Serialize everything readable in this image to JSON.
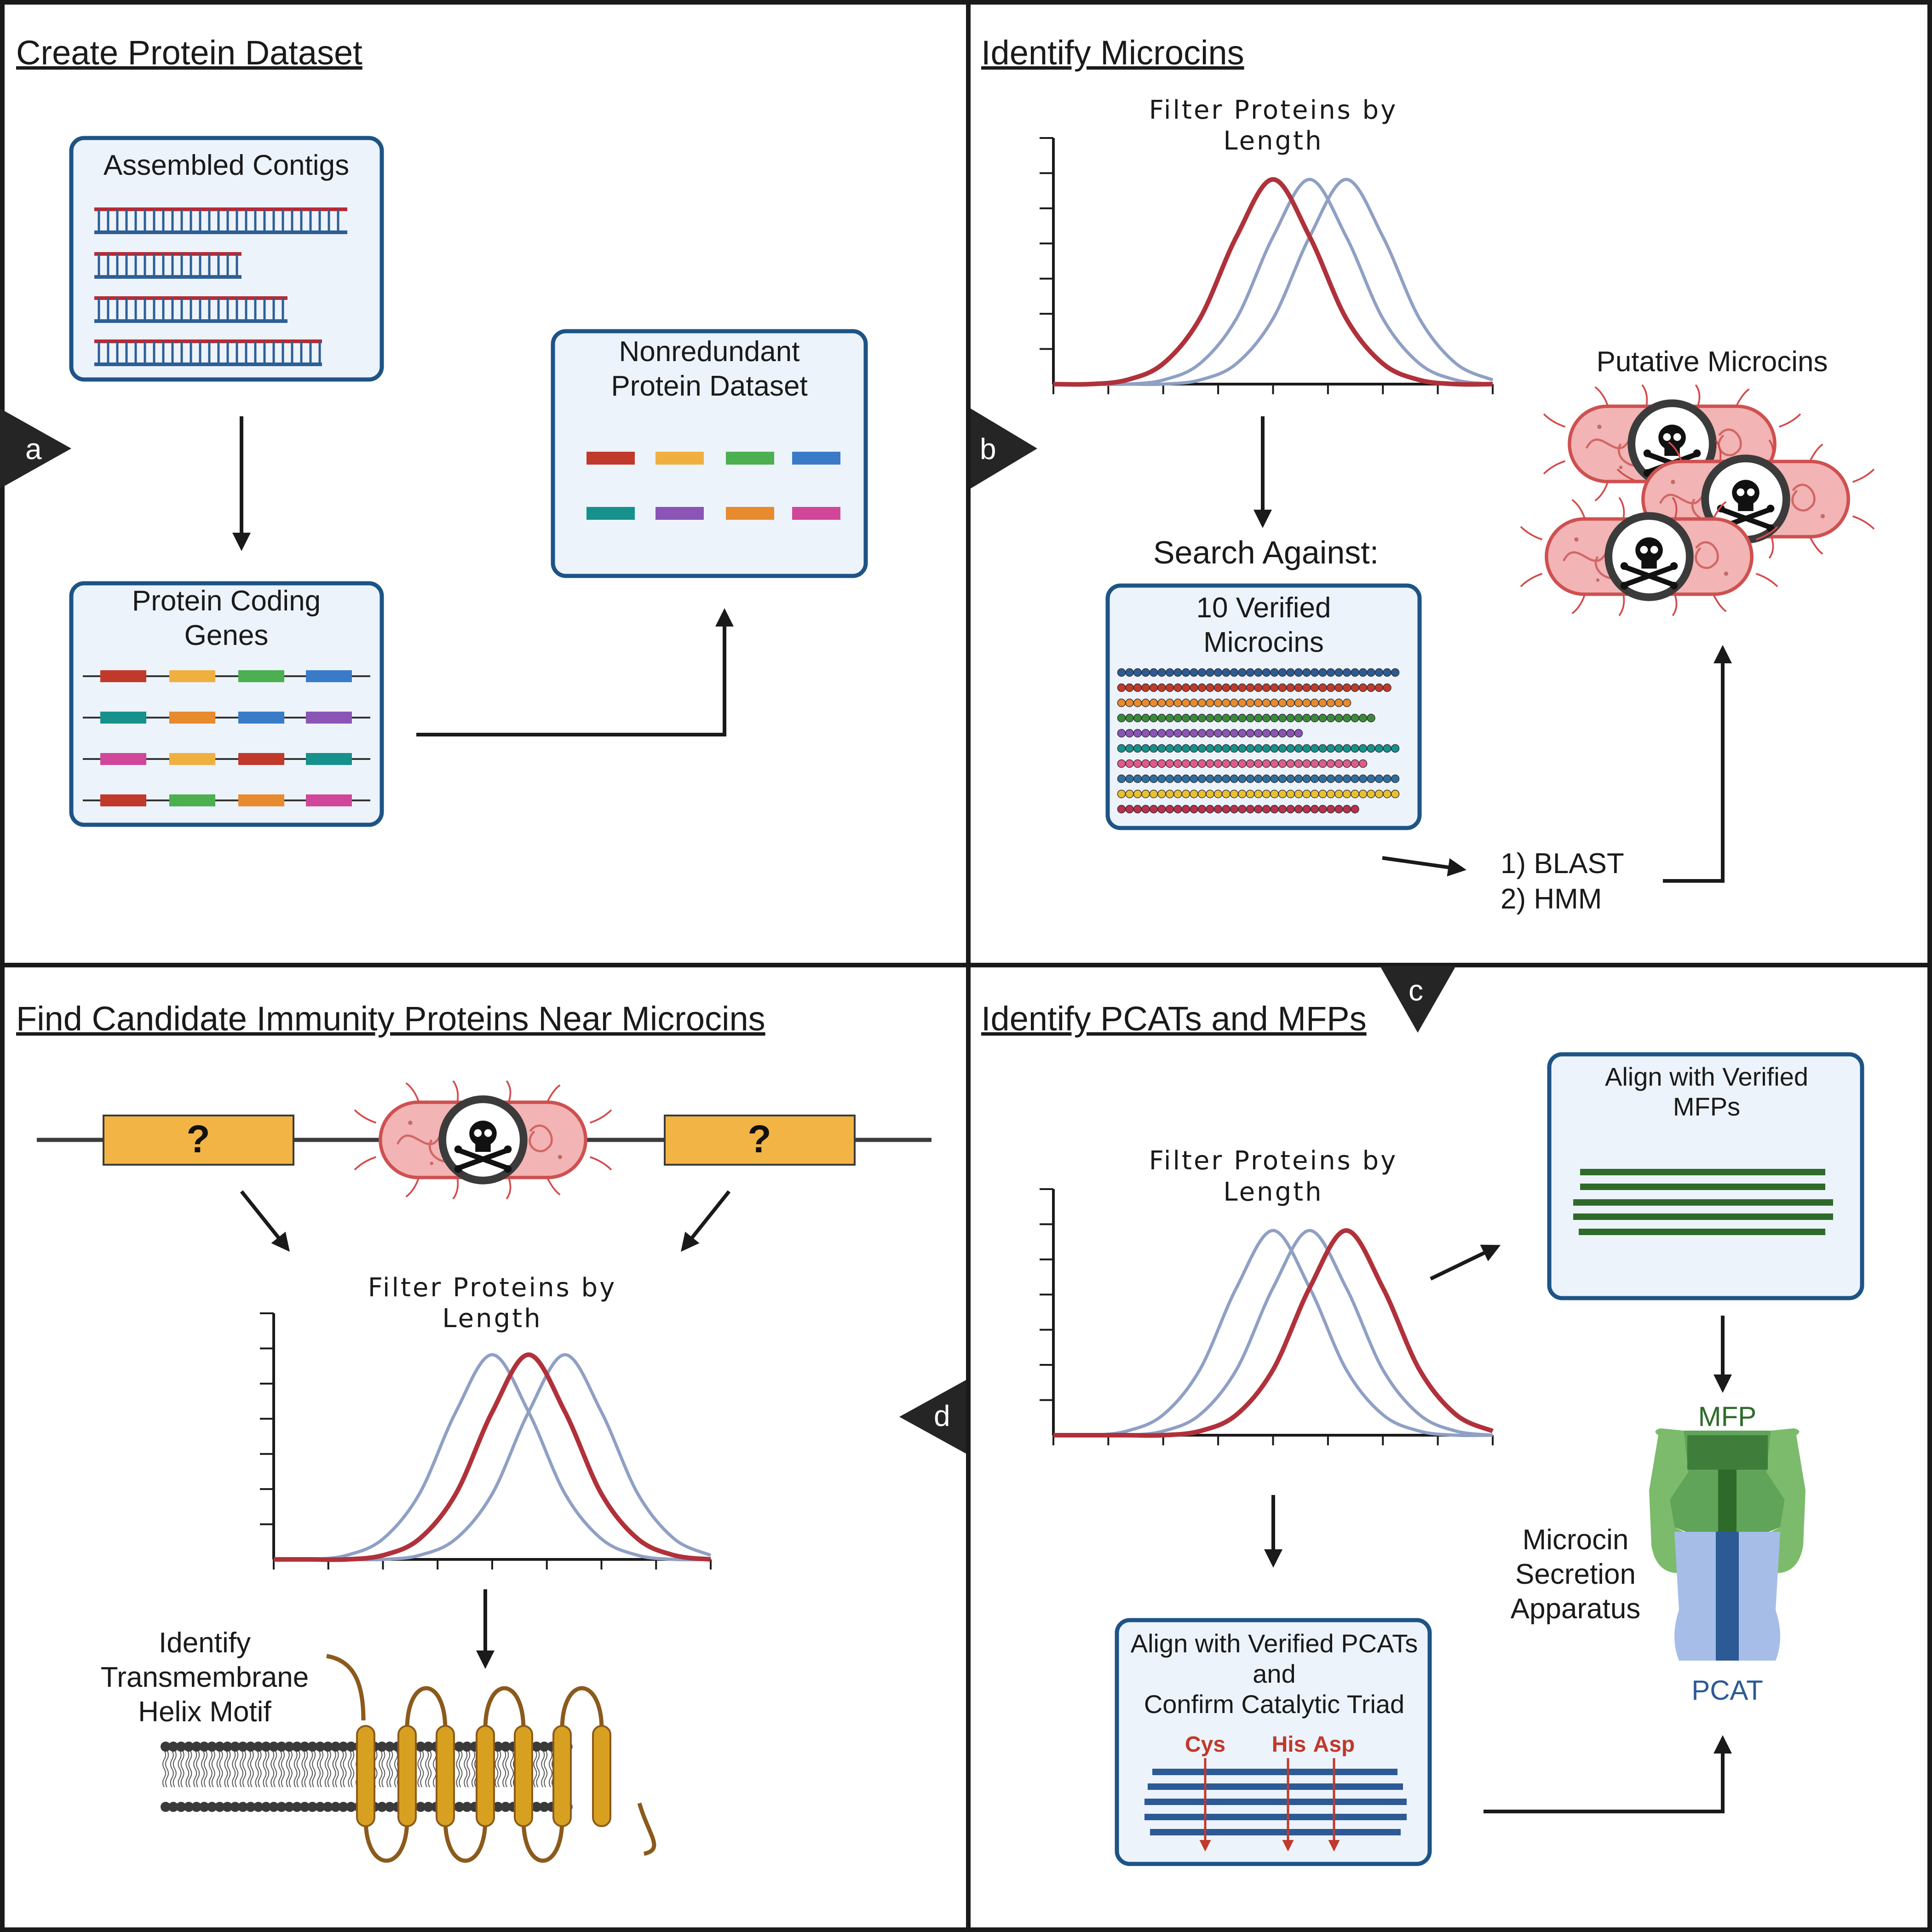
{
  "panels": {
    "a": {
      "letter": "a",
      "title": "Create Protein Dataset",
      "contigs_label": "Assembled Contigs",
      "genes_label": [
        "Protein Coding",
        "Genes"
      ],
      "dataset_label": [
        "Nonredundant",
        "Protein Dataset"
      ]
    },
    "b": {
      "letter": "b",
      "title": "Identify Microcins",
      "chart_title": [
        "Filter Proteins by",
        "Length"
      ],
      "search_label": "Search Against:",
      "verified_label": [
        "10 Verified",
        "Microcins"
      ],
      "methods": [
        "1) BLAST",
        "2) HMM"
      ],
      "putative_label": "Putative Microcins"
    },
    "c": {
      "letter": "c",
      "title": "Identify PCATs and MFPs",
      "chart_title": [
        "Filter Proteins by",
        "Length"
      ],
      "mfp_box_label": [
        "Align with Verified",
        "MFPs"
      ],
      "pcat_box_label": [
        "Align with Verified PCATs",
        "and",
        "Confirm Catalytic Triad"
      ],
      "triad": [
        "Cys",
        "His",
        "Asp"
      ],
      "apparatus_label": [
        "Microcin",
        "Secretion",
        "Apparatus"
      ],
      "mfp_label": "MFP",
      "pcat_label": "PCAT"
    },
    "d": {
      "letter": "d",
      "title": "Find Candidate Immunity Proteins Near Microcins",
      "unknown_gene_mark": "?",
      "chart_title": [
        "Filter Proteins by",
        "Length"
      ],
      "tm_label": [
        "Identify",
        "Transmembrane",
        "Helix Motif"
      ]
    }
  },
  "colors": {
    "highlight_curve": "#b0313a",
    "background_curve": "#8fa0c4",
    "box_border": "#1d5486",
    "box_fill": "#edf3fb",
    "mfp_green": "#2e6b2a",
    "pcat_blue": "#2c5a94",
    "helix_gold": "#d8a020",
    "gene_palette": [
      "#c0392b",
      "#f0b040",
      "#4caf50",
      "#3a7bc8",
      "#16918c",
      "#8a55b5",
      "#e88a2e",
      "#d0479a"
    ]
  },
  "icons": [
    "skull-crossbones-icon",
    "bacterium-icon",
    "membrane-icon",
    "transporter-icon",
    "dna-icon"
  ],
  "chart_data": [
    {
      "panel": "b",
      "type": "line",
      "title": "Filter Proteins by Length",
      "series": [
        {
          "values": [
            0.0,
            0.0,
            0.02,
            0.1,
            0.32,
            0.72,
            1.0,
            0.72,
            0.32,
            0.1,
            0.02,
            0.0,
            0.0
          ],
          "highlighted": true
        },
        {
          "values": [
            0.0,
            0.0,
            0.0,
            0.02,
            0.1,
            0.32,
            0.72,
            1.0,
            0.72,
            0.32,
            0.1,
            0.02,
            0.0
          ],
          "highlighted": false
        },
        {
          "values": [
            0.0,
            0.0,
            0.0,
            0.0,
            0.02,
            0.1,
            0.32,
            0.72,
            1.0,
            0.72,
            0.32,
            0.1,
            0.02
          ],
          "highlighted": false
        }
      ],
      "x_ticks": 8,
      "y_ticks": 7
    },
    {
      "panel": "c",
      "type": "line",
      "title": "Filter Proteins by Length",
      "series": [
        {
          "values": [
            0.0,
            0.0,
            0.02,
            0.1,
            0.32,
            0.72,
            1.0,
            0.72,
            0.32,
            0.1,
            0.02,
            0.0,
            0.0
          ],
          "highlighted": false
        },
        {
          "values": [
            0.0,
            0.0,
            0.0,
            0.02,
            0.1,
            0.32,
            0.72,
            1.0,
            0.72,
            0.32,
            0.1,
            0.02,
            0.0
          ],
          "highlighted": false
        },
        {
          "values": [
            0.0,
            0.0,
            0.0,
            0.0,
            0.02,
            0.1,
            0.32,
            0.72,
            1.0,
            0.72,
            0.32,
            0.1,
            0.02
          ],
          "highlighted": true
        }
      ],
      "x_ticks": 8,
      "y_ticks": 7
    },
    {
      "panel": "d",
      "type": "line",
      "title": "Filter Proteins by Length",
      "series": [
        {
          "values": [
            0.0,
            0.0,
            0.02,
            0.1,
            0.32,
            0.72,
            1.0,
            0.72,
            0.32,
            0.1,
            0.02,
            0.0,
            0.0
          ],
          "highlighted": false
        },
        {
          "values": [
            0.0,
            0.0,
            0.0,
            0.02,
            0.1,
            0.32,
            0.72,
            1.0,
            0.72,
            0.32,
            0.1,
            0.02,
            0.0
          ],
          "highlighted": true
        },
        {
          "values": [
            0.0,
            0.0,
            0.0,
            0.0,
            0.02,
            0.1,
            0.32,
            0.72,
            1.0,
            0.72,
            0.32,
            0.1,
            0.02
          ],
          "highlighted": false
        }
      ],
      "x_ticks": 8,
      "y_ticks": 7
    }
  ]
}
